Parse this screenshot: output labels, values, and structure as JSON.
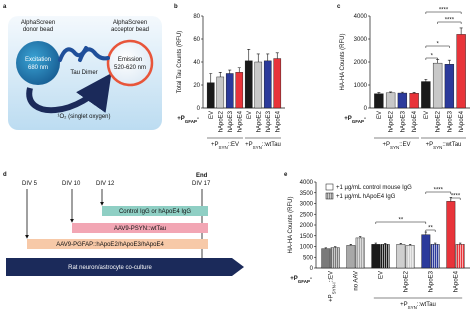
{
  "panel_a": {
    "label": "a",
    "donor": [
      "AlphaScreen",
      "donor bead"
    ],
    "acceptor": [
      "AlphaScreen",
      "acceptor bead"
    ],
    "excitation": [
      "Excitation",
      "680 nm"
    ],
    "emission": [
      "Emission",
      "520-620 nm"
    ],
    "dimer": "Tau Dimer",
    "oxygen": "¹O₂ (singlet oxygen)"
  },
  "panel_d": {
    "label": "d",
    "days": [
      "DIV 5",
      "DIV 10",
      "DIV 12",
      "DIV 17"
    ],
    "end": "End",
    "bars": [
      "Control IgG or hApoE4 IgG",
      "AAV9-PSYN::wtTau",
      "AAV9-PGFAP::hApoE2/hApoE3/hApoE4",
      "Rat neuron/astrocyte co-culture"
    ]
  },
  "chart_data": [
    {
      "type": "bar",
      "panel_label": "b",
      "ylabel": "Total Tau Counts (RFU)",
      "ylim": [
        0,
        80
      ],
      "yticks": [
        0,
        20,
        40,
        60,
        80
      ],
      "colors": [
        "#1a1a1a",
        "#c8c8c8",
        "#2b3a9b",
        "#e8343a"
      ],
      "row_label": {
        "text": "+P",
        "sub": "GFAP",
        "tail": "-"
      },
      "groups": [
        {
          "label": {
            "text": "+P",
            "sub": "SYN",
            "tail": "::EV"
          },
          "categories": [
            "EV",
            "hApoE2",
            "hApoE3",
            "hApoE4"
          ],
          "values": [
            22,
            27,
            30,
            31
          ],
          "errors": [
            8,
            4,
            3,
            4
          ]
        },
        {
          "label": {
            "text": "+P",
            "sub": "SYN",
            "tail": "::wtTau"
          },
          "categories": [
            "EV",
            "hApoE2",
            "hApoE3",
            "hApoE4"
          ],
          "values": [
            41,
            40,
            41,
            43
          ],
          "errors": [
            10,
            7,
            6,
            5
          ]
        }
      ]
    },
    {
      "type": "bar",
      "panel_label": "c",
      "ylabel": "HA-HA Counts (RFU)",
      "ylim": [
        0,
        4000
      ],
      "yticks": [
        0,
        1000,
        2000,
        3000,
        4000
      ],
      "colors": [
        "#1a1a1a",
        "#c8c8c8",
        "#2b3a9b",
        "#e8343a"
      ],
      "row_label": {
        "text": "+P",
        "sub": "GFAP",
        "tail": "-"
      },
      "groups": [
        {
          "label": {
            "text": "+P",
            "sub": "SYN",
            "tail": "::EV"
          },
          "categories": [
            "EV",
            "hApoE2",
            "hApoE3",
            "hApoE4"
          ],
          "values": [
            620,
            660,
            650,
            640
          ],
          "errors": [
            50,
            40,
            40,
            40
          ]
        },
        {
          "label": {
            "text": "+P",
            "sub": "SYN",
            "tail": "::wtTau"
          },
          "categories": [
            "EV",
            "hApoE2",
            "hApoE3",
            "hApoE4"
          ],
          "values": [
            1150,
            1950,
            1900,
            3200
          ],
          "errors": [
            100,
            150,
            180,
            280
          ]
        }
      ],
      "annotations": [
        "****",
        "****",
        "*",
        "*"
      ]
    },
    {
      "type": "groupedbar",
      "panel_label": "e",
      "ylabel": "HA-HA Counts (RFU)",
      "ylim": [
        0,
        4000
      ],
      "yticks": [
        0,
        500,
        1000,
        1500,
        2000,
        2500,
        3000,
        3500,
        4000
      ],
      "row_label": {
        "text": "+P",
        "sub": "GFAP",
        "tail": "-"
      },
      "categories": [
        {
          "text": "+P",
          "sub": "SYN-I",
          "tail": "::EV"
        },
        "no AAV",
        "EV",
        "hApoE2",
        "hApoE3",
        "hApoE4"
      ],
      "colors": [
        "#7a7a7a",
        "#a8a8a8",
        "#1a1a1a",
        "#cfcfcf",
        "#2b3a9b",
        "#e8343a"
      ],
      "series": [
        {
          "name": "+1 µg/mL control mouse IgG",
          "values": [
            900,
            1050,
            1100,
            1100,
            1550,
            3100
          ],
          "errors": [
            40,
            50,
            60,
            50,
            120,
            180
          ]
        },
        {
          "name": "+1 µg/mL hApoE4 IgG",
          "pattern": "hatch",
          "values": [
            950,
            1400,
            1100,
            1050,
            1100,
            1100
          ],
          "errors": [
            40,
            60,
            50,
            50,
            60,
            60
          ]
        }
      ],
      "group_label": {
        "text": "+P",
        "sub": "SYN",
        "tail": "::wtTau"
      },
      "annotations": [
        "**",
        "**",
        "****",
        "****"
      ]
    }
  ]
}
